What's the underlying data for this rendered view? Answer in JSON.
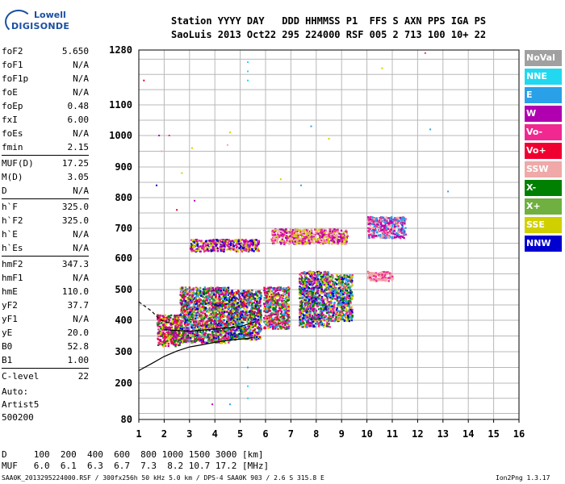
{
  "logo": {
    "line1": "Lowell",
    "line2": "DIGISONDE"
  },
  "header": {
    "line1": "Station YYYY DAY   DDD HHMMSS P1  FFS S AXN PPS IGA PS",
    "line2": "SaoLuis 2013 Oct22 295 224000 RSF 005 2 713 100 10+ 22"
  },
  "params": [
    {
      "key": "foF2",
      "value": "5.650"
    },
    {
      "key": "foF1",
      "value": "N/A"
    },
    {
      "key": "foF1p",
      "value": "N/A"
    },
    {
      "key": "foE",
      "value": "N/A"
    },
    {
      "key": "foEp",
      "value": "0.48"
    },
    {
      "key": "fxI",
      "value": "6.00"
    },
    {
      "key": "foEs",
      "value": "N/A"
    },
    {
      "key": "fmin",
      "value": "2.15"
    },
    {
      "key": "MUF(D)",
      "value": "17.25"
    },
    {
      "key": "M(D)",
      "value": "3.05"
    },
    {
      "key": "D",
      "value": "N/A"
    },
    {
      "key": "h`F",
      "value": "325.0"
    },
    {
      "key": "h`F2",
      "value": "325.0"
    },
    {
      "key": "h`E",
      "value": "N/A"
    },
    {
      "key": "h`Es",
      "value": "N/A"
    },
    {
      "key": "hmF2",
      "value": "347.3"
    },
    {
      "key": "hmF1",
      "value": "N/A"
    },
    {
      "key": "hmE",
      "value": "110.0"
    },
    {
      "key": "yF2",
      "value": "37.7"
    },
    {
      "key": "yF1",
      "value": "N/A"
    },
    {
      "key": "yE",
      "value": "20.0"
    },
    {
      "key": "B0",
      "value": "52.8"
    },
    {
      "key": "B1",
      "value": "1.00"
    },
    {
      "key": "C-level",
      "value": "22"
    }
  ],
  "auto": {
    "label": "Auto:",
    "system": "Artist5",
    "version": "500200"
  },
  "bottom": {
    "d_line": "D     100  200  400  600  800 1000 1500 3000 [km]",
    "muf_line": "MUF   6.0  6.1  6.3  6.7  7.3  8.2 10.7 17.2 [MHz]"
  },
  "footer": {
    "left": "SAA0K_2013295224000.RSF / 300fx256h 50 kHz 5.0 km / DPS-4 SAA0K 903 / 2.6 S 315.8 E",
    "right": "Ion2Png 1.3.17"
  },
  "legend": [
    {
      "label": "NoVal",
      "color": "#a0a0a0"
    },
    {
      "label": "NNE",
      "color": "#22d8f0"
    },
    {
      "label": "E",
      "color": "#2aa0e8"
    },
    {
      "label": "W",
      "color": "#b000b0"
    },
    {
      "label": "Vo-",
      "color": "#f02890"
    },
    {
      "label": "Vo+",
      "color": "#f00030"
    },
    {
      "label": "SSW",
      "color": "#f0a8a8"
    },
    {
      "label": "X-",
      "color": "#008000"
    },
    {
      "label": "X+",
      "color": "#70b040"
    },
    {
      "label": "SSE",
      "color": "#d0d000"
    },
    {
      "label": "NNW",
      "color": "#0000d0"
    }
  ],
  "chart_data": {
    "type": "scatter",
    "title": "",
    "xlabel": "",
    "ylabel": "",
    "xlim": [
      1,
      16
    ],
    "ylim": [
      80,
      1280
    ],
    "x_ticks": [
      1,
      2,
      3,
      4,
      5,
      6,
      7,
      8,
      9,
      10,
      11,
      12,
      13,
      14,
      15,
      16
    ],
    "y_ticks": [
      80,
      200,
      300,
      400,
      500,
      600,
      700,
      800,
      900,
      1000,
      1100,
      1280
    ],
    "grid": true,
    "legend_position": "right",
    "clusters": [
      {
        "x": [
          1.7,
          2.6
        ],
        "y": [
          320,
          420
        ],
        "colors": [
          "#f00030",
          "#f02890",
          "#008000",
          "#d0d000",
          "#b000b0"
        ]
      },
      {
        "x": [
          2.6,
          4.6
        ],
        "y": [
          330,
          510
        ],
        "colors": [
          "#f00030",
          "#d0d000",
          "#f02890",
          "#b000b0",
          "#008000",
          "#2aa0e8",
          "#0000d0",
          "#70b040"
        ]
      },
      {
        "x": [
          4.6,
          5.8
        ],
        "y": [
          340,
          500
        ],
        "colors": [
          "#d0d000",
          "#008000",
          "#f00030",
          "#0000d0",
          "#b000b0",
          "#2aa0e8"
        ]
      },
      {
        "x": [
          5.9,
          6.9
        ],
        "y": [
          375,
          510
        ],
        "colors": [
          "#d0d000",
          "#f00030",
          "#008000",
          "#b000b0",
          "#2aa0e8",
          "#f02890"
        ]
      },
      {
        "x": [
          7.3,
          8.5
        ],
        "y": [
          380,
          560
        ],
        "colors": [
          "#0000d0",
          "#008000",
          "#d0d000",
          "#2aa0e8",
          "#f02890",
          "#b000b0"
        ]
      },
      {
        "x": [
          8.5,
          9.4
        ],
        "y": [
          400,
          550
        ],
        "colors": [
          "#d0d000",
          "#2aa0e8",
          "#0000d0",
          "#f02890",
          "#008000"
        ]
      },
      {
        "x": [
          3.0,
          5.7
        ],
        "y": [
          625,
          665
        ],
        "colors": [
          "#d0d000",
          "#0000d0",
          "#b000b0",
          "#f02890"
        ]
      },
      {
        "x": [
          6.2,
          9.2
        ],
        "y": [
          650,
          700
        ],
        "colors": [
          "#d0d000",
          "#f02890",
          "#b000b0",
          "#f0a8a8"
        ]
      },
      {
        "x": [
          10.0,
          11.5
        ],
        "y": [
          670,
          740
        ],
        "colors": [
          "#b000b0",
          "#f02890",
          "#f0a8a8",
          "#2aa0e8"
        ]
      },
      {
        "x": [
          10.0,
          11.0
        ],
        "y": [
          530,
          560
        ],
        "colors": [
          "#f0a8a8",
          "#f02890"
        ]
      }
    ],
    "scatter_points": [
      {
        "x": 5.3,
        "y": 1180,
        "color": "#22d8f0"
      },
      {
        "x": 5.3,
        "y": 1240,
        "color": "#22d8f0"
      },
      {
        "x": 5.3,
        "y": 1210,
        "color": "#22d8f0"
      },
      {
        "x": 5.3,
        "y": 190,
        "color": "#22d8f0"
      },
      {
        "x": 5.3,
        "y": 150,
        "color": "#22d8f0"
      },
      {
        "x": 1.2,
        "y": 1180,
        "color": "#f00030"
      },
      {
        "x": 1.8,
        "y": 1000,
        "color": "#b000b0"
      },
      {
        "x": 1.9,
        "y": 950,
        "color": "#f0a8a8"
      },
      {
        "x": 2.2,
        "y": 1000,
        "color": "#f02890"
      },
      {
        "x": 2.7,
        "y": 880,
        "color": "#d0d000"
      },
      {
        "x": 3.1,
        "y": 960,
        "color": "#d0d000"
      },
      {
        "x": 4.5,
        "y": 970,
        "color": "#f0a8a8"
      },
      {
        "x": 4.6,
        "y": 1010,
        "color": "#d0d000"
      },
      {
        "x": 7.8,
        "y": 1030,
        "color": "#2aa0e8"
      },
      {
        "x": 8.5,
        "y": 990,
        "color": "#d0d000"
      },
      {
        "x": 12.5,
        "y": 1020,
        "color": "#2aa0e8"
      },
      {
        "x": 12.3,
        "y": 1270,
        "color": "#f02890"
      },
      {
        "x": 10.6,
        "y": 1220,
        "color": "#d0d000"
      },
      {
        "x": 13.2,
        "y": 820,
        "color": "#2aa0e8"
      },
      {
        "x": 7.4,
        "y": 840,
        "color": "#2aa0e8"
      },
      {
        "x": 6.6,
        "y": 860,
        "color": "#d0d000"
      },
      {
        "x": 4.6,
        "y": 130,
        "color": "#2aa0e8"
      },
      {
        "x": 3.9,
        "y": 130,
        "color": "#b000b0"
      },
      {
        "x": 5.3,
        "y": 250,
        "color": "#2aa0e8"
      },
      {
        "x": 2.5,
        "y": 760,
        "color": "#f00030"
      },
      {
        "x": 3.2,
        "y": 790,
        "color": "#b000b0"
      },
      {
        "x": 1.7,
        "y": 840,
        "color": "#0000d0"
      }
    ],
    "trace": {
      "name": "",
      "x": [
        1.0,
        1.5,
        2.0,
        2.5,
        3.0,
        3.5,
        4.0,
        4.5,
        5.0,
        5.3,
        5.5
      ],
      "y": [
        240,
        262,
        285,
        302,
        315,
        322,
        330,
        336,
        340,
        342,
        345
      ],
      "color": "#000000"
    },
    "trace_dashed": {
      "x": [
        1.0,
        1.5,
        1.8,
        2.0,
        2.3
      ],
      "y": [
        460,
        430,
        405,
        395,
        390
      ],
      "color": "#000000"
    },
    "trace_upper": {
      "x": [
        2.0,
        3.0,
        4.0,
        5.0,
        5.6
      ],
      "y": [
        370,
        365,
        372,
        380,
        395
      ],
      "color": "#000000"
    }
  }
}
